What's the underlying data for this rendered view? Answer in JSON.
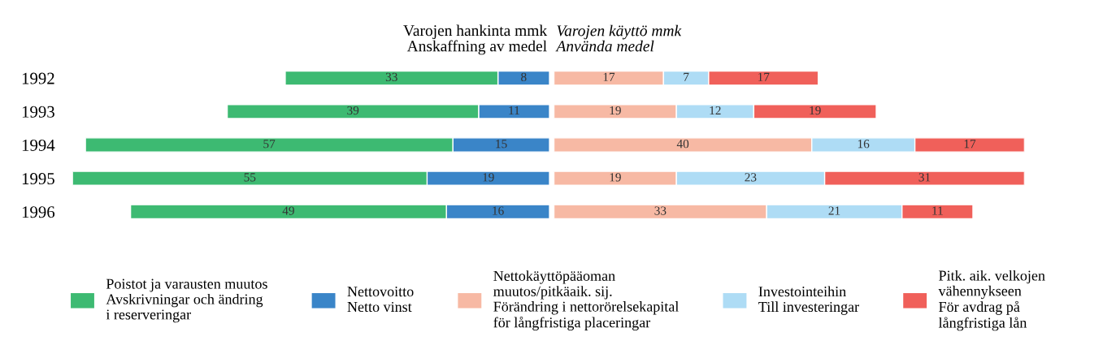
{
  "chart_data": [
    {
      "type": "bar",
      "orientation": "horizontal",
      "stacked": true,
      "categories": [
        "1992",
        "1993",
        "1994",
        "1995",
        "1996"
      ],
      "xlim": [
        74,
        0
      ],
      "series": [
        {
          "name": "Nettovoitto\nNetto vinst",
          "color": "#3a85c8",
          "values": [
            8,
            11,
            15,
            19,
            16
          ]
        },
        {
          "name": "Poistot ja varausten muutos\nAvskrivningar och ändring\ni reserveringar",
          "color": "#3dba72",
          "values": [
            33,
            39,
            57,
            55,
            49
          ]
        }
      ],
      "annotations": [
        "Varojen hankinta mmk\nAnskaffning av medel"
      ],
      "data_labels": true,
      "tick_labels": "y",
      "legend": "bottom"
    },
    {
      "type": "bar",
      "orientation": "horizontal",
      "stacked": true,
      "categories": [
        "1992",
        "1993",
        "1994",
        "1995",
        "1996"
      ],
      "xlim": [
        0,
        73
      ],
      "series": [
        {
          "name": "Nettokäyttöpääoman\nmuutos/pitkäaik. sij.\nFörändring i nettorörelsekapital\nför långfristiga placeringar",
          "color": "#f7b9a4",
          "values": [
            17,
            19,
            40,
            19,
            33
          ]
        },
        {
          "name": "Investointeihin\nTill investeringar",
          "color": "#aedcf5",
          "values": [
            7,
            12,
            16,
            23,
            21
          ]
        },
        {
          "name": "Pitk. aik. velkojen\nvähennykseen\nFör avdrag på\nlångfristiga lån",
          "color": "#f0605a",
          "values": [
            17,
            19,
            17,
            31,
            11
          ]
        }
      ],
      "annotations": [
        "Varojen käyttö mmk\nAnvända medel"
      ],
      "data_labels": true,
      "tick_labels": false,
      "legend": "bottom"
    }
  ]
}
